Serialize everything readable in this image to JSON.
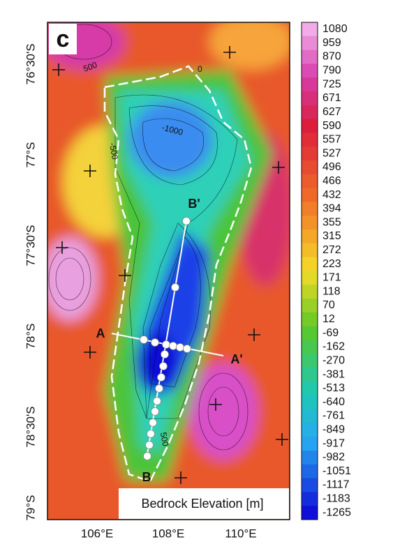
{
  "panel_label": "c",
  "latitude_labels": [
    "76°30'S",
    "77°S",
    "77°30'S",
    "78°S",
    "78°30'S",
    "79°S"
  ],
  "longitude_labels": [
    "106°E",
    "108°E",
    "110°E"
  ],
  "legend": {
    "title": "Bedrock Elevation [m]",
    "levels": [
      1080,
      959,
      870,
      790,
      725,
      671,
      627,
      590,
      557,
      527,
      496,
      466,
      432,
      394,
      355,
      315,
      272,
      223,
      171,
      118,
      70,
      12,
      -69,
      -162,
      -270,
      -381,
      -513,
      -640,
      -761,
      -849,
      -917,
      -982,
      -1051,
      -1117,
      -1183,
      -1265
    ]
  },
  "profiles": {
    "a_start": "A",
    "a_end": "A'",
    "b_start": "B",
    "b_end": "B'"
  },
  "contour_labels": [
    "500",
    "0",
    "-1000",
    "-500",
    "500"
  ]
}
